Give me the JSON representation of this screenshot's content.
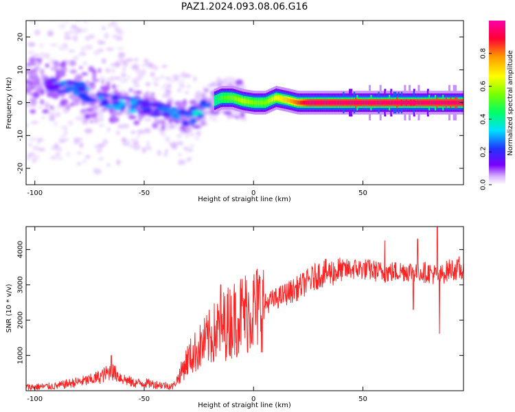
{
  "title": "PAZ1.2024.093.08.06.G16",
  "chart_data": [
    {
      "type": "heatmap",
      "xlabel": "Height of straight line (km)",
      "ylabel": "Frequency (Hz)",
      "xlim": [
        -104,
        96
      ],
      "ylim": [
        -25,
        25
      ],
      "xticks": [
        -100,
        -50,
        0,
        50
      ],
      "yticks": [
        -20,
        -10,
        0,
        10,
        20
      ],
      "colorbar": {
        "label": "Normalized spectral amplitude",
        "range": [
          0,
          1
        ],
        "ticks": [
          0.0,
          0.2,
          0.4,
          0.6,
          0.8
        ],
        "colors": [
          "#ffffff",
          "#d8b4fe",
          "#7c00ff",
          "#2233ff",
          "#00e0ff",
          "#00ff66",
          "#77ff00",
          "#ffff00",
          "#ff9900",
          "#ff0033",
          "#ff00aa"
        ]
      },
      "ridge": {
        "x": [
          -100,
          -90,
          -80,
          -70,
          -60,
          -50,
          -40,
          -30,
          -20,
          -15,
          -10,
          -5,
          0,
          5,
          10,
          15,
          20,
          25,
          96
        ],
        "frequency": [
          6,
          5,
          4,
          1,
          -0.5,
          -1,
          -3,
          -5,
          0,
          1.5,
          1.5,
          0.5,
          0,
          0,
          1.5,
          0.8,
          0,
          0,
          0
        ],
        "amplitude": [
          0.25,
          0.3,
          0.35,
          0.35,
          0.4,
          0.35,
          0.35,
          0.4,
          0.45,
          0.55,
          0.6,
          0.65,
          0.6,
          0.6,
          0.7,
          0.75,
          0.85,
          0.95,
          0.95
        ]
      }
    },
    {
      "type": "line",
      "xlabel": "Height of straight line (km)",
      "ylabel": "SNR (10 * v/v)",
      "xlim": [
        -104,
        96
      ],
      "ylim": [
        0,
        4650
      ],
      "xticks": [
        -100,
        -50,
        0,
        50
      ],
      "yticks": [
        1000,
        2000,
        3000,
        4000
      ],
      "color": "#ff2222",
      "x": [
        -104,
        -95,
        -90,
        -85,
        -80,
        -75,
        -70,
        -65,
        -60,
        -55,
        -50,
        -45,
        -40,
        -37,
        -35,
        -30,
        -25,
        -20,
        -15,
        -10,
        -5,
        0,
        10,
        20,
        25,
        30,
        40,
        45,
        50,
        60,
        70,
        80,
        85,
        90,
        96
      ],
      "values": [
        100,
        120,
        130,
        200,
        250,
        300,
        400,
        560,
        350,
        220,
        220,
        180,
        150,
        120,
        300,
        900,
        1200,
        1500,
        1800,
        2000,
        2200,
        2300,
        2600,
        2900,
        3100,
        3300,
        3400,
        3450,
        3450,
        3350,
        3400,
        3350,
        3250,
        3450,
        3400
      ],
      "annotations": {
        "peaks": [
          {
            "x": -65,
            "y": 1000
          },
          {
            "x": -15,
            "y": 3000
          },
          {
            "x": 60,
            "y": 4250
          },
          {
            "x": 75,
            "y": 4300
          },
          {
            "x": 84,
            "y": 4700
          },
          {
            "x": 94,
            "y": 3800
          }
        ],
        "dips": [
          {
            "x": 85,
            "y": 1620
          },
          {
            "x": 73,
            "y": 2300
          }
        ]
      }
    }
  ]
}
